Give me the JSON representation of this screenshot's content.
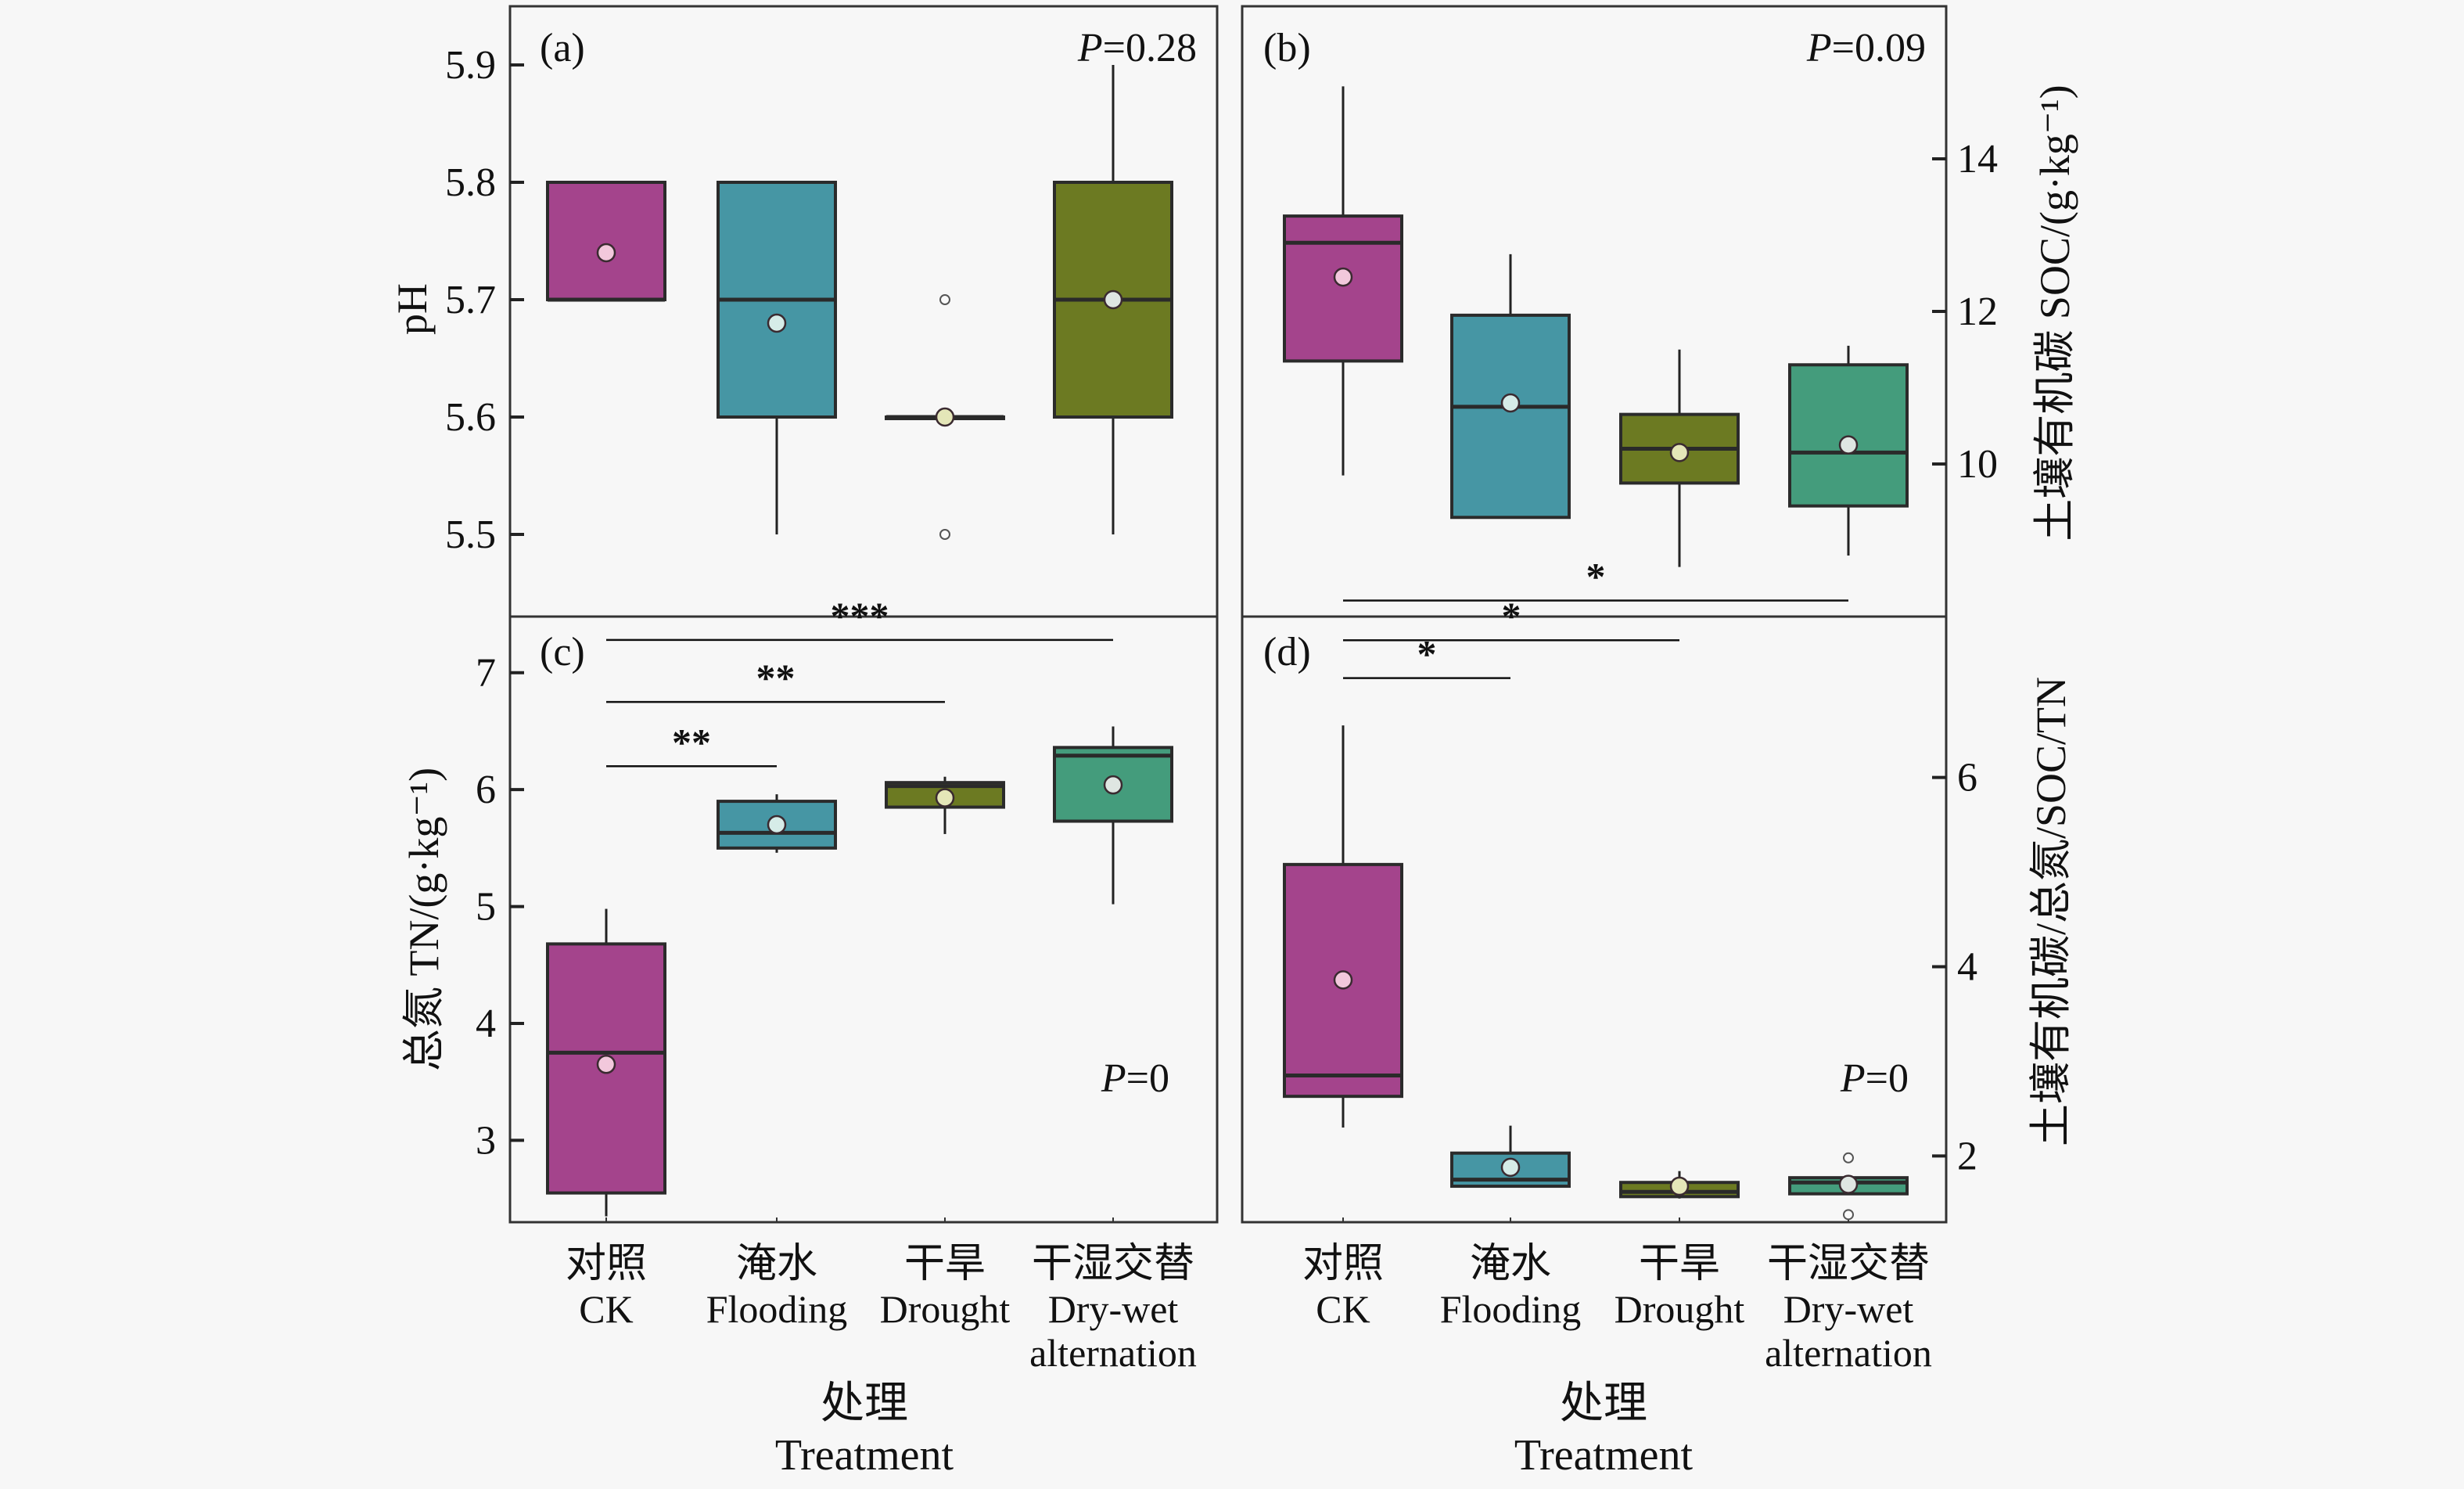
{
  "chart_data": [
    {
      "id": "a",
      "type": "box",
      "panel_label": "(a)",
      "p_value_label": "P",
      "p_value_text": "=0.28",
      "ylabel": "pH",
      "y_axis_side": "left",
      "ylim": [
        5.43,
        5.95
      ],
      "yticks": [
        5.5,
        5.6,
        5.7,
        5.8,
        5.9
      ],
      "ytick_labels": [
        "5.5",
        "5.6",
        "5.7",
        "5.8",
        "5.9"
      ],
      "categories": [
        "CK",
        "Flooding",
        "Drought",
        "Dry-wet alternation"
      ],
      "boxes": [
        {
          "category": "CK",
          "whisker_low": 5.7,
          "q1": 5.7,
          "median": 5.7,
          "q3": 5.8,
          "whisker_high": 5.8,
          "mean": 5.74,
          "outliers": [],
          "color": "#a4448c"
        },
        {
          "category": "Flooding",
          "whisker_low": 5.5,
          "q1": 5.6,
          "median": 5.7,
          "q3": 5.8,
          "whisker_high": 5.8,
          "mean": 5.68,
          "outliers": [],
          "color": "#4696a4"
        },
        {
          "category": "Drought",
          "whisker_low": 5.6,
          "q1": 5.6,
          "median": 5.6,
          "q3": 5.6,
          "whisker_high": 5.6,
          "mean": 5.6,
          "outliers": [
            5.7,
            5.5
          ],
          "color": "#6c7a22"
        },
        {
          "category": "Dry-wet alternation",
          "whisker_low": 5.5,
          "q1": 5.6,
          "median": 5.7,
          "q3": 5.8,
          "whisker_high": 5.9,
          "mean": 5.7,
          "outliers": [],
          "color": "#6c7a22"
        }
      ],
      "significance": []
    },
    {
      "id": "b",
      "type": "box",
      "panel_label": "(b)",
      "p_value_label": "P",
      "p_value_text": "=0.09",
      "ylabel": "土壤有机碳 SOC/(g·kg⁻¹)",
      "y_axis_side": "right",
      "ylim": [
        8.0,
        16.0
      ],
      "yticks": [
        10,
        12,
        14
      ],
      "ytick_labels": [
        "10",
        "12",
        "14"
      ],
      "categories": [
        "CK",
        "Flooding",
        "Drought",
        "Dry-wet alternation"
      ],
      "boxes": [
        {
          "category": "CK",
          "whisker_low": 9.85,
          "q1": 11.35,
          "median": 12.9,
          "q3": 13.25,
          "whisker_high": 14.95,
          "mean": 12.45,
          "outliers": [],
          "color": "#a4448c"
        },
        {
          "category": "Flooding",
          "whisker_low": 9.3,
          "q1": 9.3,
          "median": 10.75,
          "q3": 11.95,
          "whisker_high": 12.75,
          "mean": 10.8,
          "outliers": [],
          "color": "#4696a4"
        },
        {
          "category": "Drought",
          "whisker_low": 8.65,
          "q1": 9.75,
          "median": 10.2,
          "q3": 10.65,
          "whisker_high": 11.5,
          "mean": 10.15,
          "outliers": [],
          "color": "#6c7a22"
        },
        {
          "category": "Dry-wet alternation",
          "whisker_low": 8.8,
          "q1": 9.45,
          "median": 10.15,
          "q3": 11.3,
          "whisker_high": 11.55,
          "mean": 10.25,
          "outliers": [],
          "color": "#449c7c"
        }
      ],
      "significance": []
    },
    {
      "id": "c",
      "type": "box",
      "panel_label": "(c)",
      "p_value_label": "P",
      "p_value_text": "=0",
      "ylabel": "总氮 TN/(g·kg⁻¹)",
      "y_axis_side": "left",
      "ylim": [
        2.3,
        7.48
      ],
      "yticks": [
        3,
        4,
        5,
        6,
        7
      ],
      "ytick_labels": [
        "3",
        "4",
        "5",
        "6",
        "7"
      ],
      "categories": [
        "CK",
        "Flooding",
        "Drought",
        "Dry-wet alternation"
      ],
      "boxes": [
        {
          "category": "CK",
          "whisker_low": 2.35,
          "q1": 2.55,
          "median": 3.75,
          "q3": 4.68,
          "whisker_high": 4.98,
          "mean": 3.65,
          "outliers": [],
          "color": "#a4448c"
        },
        {
          "category": "Flooding",
          "whisker_low": 5.46,
          "q1": 5.5,
          "median": 5.63,
          "q3": 5.9,
          "whisker_high": 5.96,
          "mean": 5.7,
          "outliers": [],
          "color": "#4696a4"
        },
        {
          "category": "Drought",
          "whisker_low": 5.62,
          "q1": 5.85,
          "median": 6.03,
          "q3": 6.06,
          "whisker_high": 6.11,
          "mean": 5.93,
          "outliers": [],
          "color": "#6c7a22"
        },
        {
          "category": "Dry-wet alternation",
          "whisker_low": 5.02,
          "q1": 5.73,
          "median": 6.29,
          "q3": 6.36,
          "whisker_high": 6.54,
          "mean": 6.04,
          "outliers": [],
          "color": "#449c7c"
        }
      ],
      "significance": [
        {
          "from": "CK",
          "to": "Flooding",
          "label": "**",
          "y": 6.2
        },
        {
          "from": "CK",
          "to": "Drought",
          "label": "**",
          "y": 6.75
        },
        {
          "from": "CK",
          "to": "Dry-wet alternation",
          "label": "***",
          "y": 7.28
        }
      ]
    },
    {
      "id": "d",
      "type": "box",
      "panel_label": "(d)",
      "p_value_label": "P",
      "p_value_text": "=0",
      "ylabel": "土壤有机碳/总氮/SOC/TN",
      "y_axis_side": "right",
      "ylim": [
        1.3,
        7.7
      ],
      "yticks": [
        2,
        4,
        6
      ],
      "ytick_labels": [
        "2",
        "4",
        "6"
      ],
      "categories": [
        "CK",
        "Flooding",
        "Drought",
        "Dry-wet alternation"
      ],
      "boxes": [
        {
          "category": "CK",
          "whisker_low": 2.3,
          "q1": 2.63,
          "median": 2.85,
          "q3": 5.08,
          "whisker_high": 6.55,
          "mean": 3.86,
          "outliers": [],
          "color": "#a4448c"
        },
        {
          "category": "Flooding",
          "whisker_low": 1.68,
          "q1": 1.68,
          "median": 1.75,
          "q3": 2.03,
          "whisker_high": 2.32,
          "mean": 1.88,
          "outliers": [],
          "color": "#4696a4"
        },
        {
          "category": "Drought",
          "whisker_low": 1.55,
          "q1": 1.57,
          "median": 1.62,
          "q3": 1.72,
          "whisker_high": 1.84,
          "mean": 1.68,
          "outliers": [],
          "color": "#6c7a22"
        },
        {
          "category": "Dry-wet alternation",
          "whisker_low": 1.6,
          "q1": 1.6,
          "median": 1.72,
          "q3": 1.77,
          "whisker_high": 1.77,
          "mean": 1.7,
          "outliers": [
            1.98,
            1.38
          ],
          "color": "#449c7c"
        }
      ],
      "significance": [
        {
          "from": "CK",
          "to": "Flooding",
          "label": "*",
          "y": 7.05
        },
        {
          "from": "CK",
          "to": "Drought",
          "label": "*",
          "y": 7.45
        },
        {
          "from": "CK",
          "to": "Dry-wet alternation",
          "label": "*",
          "y": 7.87
        }
      ]
    }
  ],
  "x_axis": {
    "categories_zh": [
      "对照",
      "淹水",
      "干旱",
      "干湿交替"
    ],
    "categories_en_line1": [
      "CK",
      "Flooding",
      "Drought",
      "Dry-wet"
    ],
    "categories_en_line2": [
      "",
      "",
      "",
      "alternation"
    ],
    "title_zh": "处理",
    "title_en": "Treatment"
  },
  "colors": {
    "ck": "#a4448c",
    "flooding": "#4696a4",
    "drought": "#6c7a22",
    "dry_wet_b": "#6c7a22",
    "dry_wet": "#449c7c",
    "mean_fill": "#f2c8dc",
    "median_line": "#2a2a2a"
  }
}
